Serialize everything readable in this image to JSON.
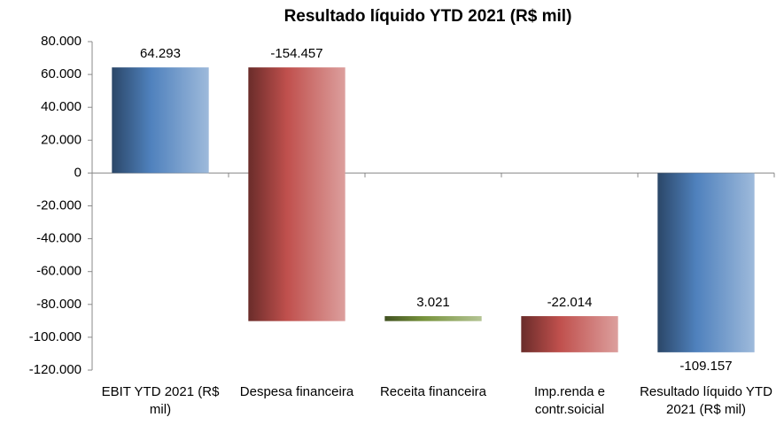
{
  "chart_data": {
    "type": "waterfall",
    "title": "Resultado líquido YTD 2021 (R$ mil)",
    "categories": [
      "EBIT YTD 2021 (R$ mil)",
      "Despesa financeira",
      "Receita financeira",
      "Imp.renda e contr.soicial",
      "Resultado líquido YTD 2021 (R$ mil)"
    ],
    "values": [
      64293,
      -154457,
      3021,
      -22014,
      -109157
    ],
    "value_labels": [
      "64.293",
      "-154.457",
      "3.021",
      "-22.014",
      "-109.157"
    ],
    "colors": [
      "#4f81bd",
      "#c0504d",
      "#77933c",
      "#c0504d",
      "#4f81bd"
    ],
    "total_last": true,
    "ylim": [
      -120000,
      80000
    ],
    "yticks": [
      {
        "value": -120000,
        "label": "-120.000"
      },
      {
        "value": -100000,
        "label": "-100.000"
      },
      {
        "value": -80000,
        "label": "-80.000"
      },
      {
        "value": -60000,
        "label": "-60.000"
      },
      {
        "value": -40000,
        "label": "-40.000"
      },
      {
        "value": -20000,
        "label": "-20.000"
      },
      0,
      {
        "value": 20000,
        "label": "20.000"
      },
      {
        "value": 40000,
        "label": "40.000"
      },
      {
        "value": 60000,
        "label": "60.000"
      },
      {
        "value": 80000,
        "label": "80.000"
      }
    ]
  }
}
